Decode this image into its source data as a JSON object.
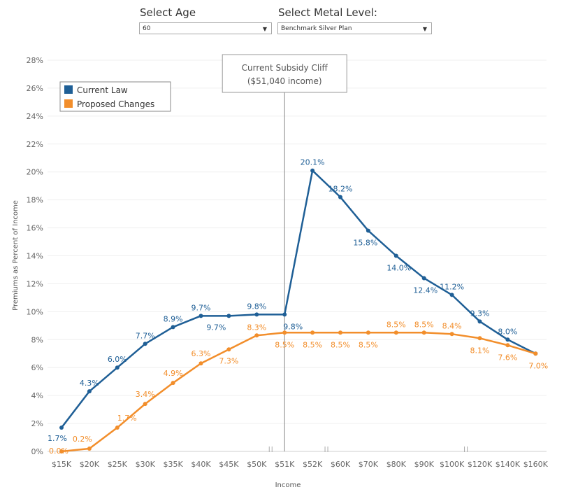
{
  "filters": {
    "age": {
      "label": "Select Age",
      "value": "60"
    },
    "metal": {
      "label": "Select Metal Level:",
      "value": "Benchmark Silver Plan"
    }
  },
  "chart_data": {
    "type": "line",
    "title": "",
    "xlabel": "Income",
    "ylabel": "Premiums as Percent of Income",
    "categories": [
      "$15K",
      "$20K",
      "$25K",
      "$30K",
      "$35K",
      "$40K",
      "$45K",
      "$50K",
      "$51K",
      "$52K",
      "$60K",
      "$70K",
      "$80K",
      "$90K",
      "$100K",
      "$120K",
      "$140K",
      "$160K"
    ],
    "ylim": [
      0,
      28
    ],
    "yticks": [
      "0%",
      "2%",
      "4%",
      "6%",
      "8%",
      "10%",
      "12%",
      "14%",
      "16%",
      "18%",
      "20%",
      "22%",
      "24%",
      "26%",
      "28%"
    ],
    "grid": true,
    "legend_position": "top-left",
    "series": [
      {
        "name": "Current Law",
        "color": "#1f5f96",
        "values": [
          1.7,
          4.3,
          6.0,
          7.7,
          8.9,
          9.7,
          9.7,
          9.8,
          9.8,
          20.1,
          18.2,
          15.8,
          14.0,
          12.4,
          11.2,
          9.3,
          8.0,
          7.0
        ],
        "labels": [
          "1.7%",
          "4.3%",
          "6.0%",
          "7.7%",
          "8.9%",
          "9.7%",
          "9.7%",
          "9.8%",
          "9.8%",
          "20.1%",
          "18.2%",
          "15.8%",
          "14.0%",
          "12.4%",
          "11.2%",
          "9.3%",
          "8.0%",
          ""
        ]
      },
      {
        "name": "Proposed Changes",
        "color": "#f28e2b",
        "values": [
          0.0,
          0.2,
          1.7,
          3.4,
          4.9,
          6.3,
          7.3,
          8.3,
          8.5,
          8.5,
          8.5,
          8.5,
          8.5,
          8.5,
          8.4,
          8.1,
          7.6,
          7.0
        ],
        "labels": [
          "0.0%",
          "0.2%",
          "1.7%",
          "3.4%",
          "4.9%",
          "6.3%",
          "7.3%",
          "8.3%",
          "8.5%",
          "8.5%",
          "8.5%",
          "8.5%",
          "8.5%",
          "8.5%",
          "8.4%",
          "8.1%",
          "7.6%",
          "7.0%"
        ]
      }
    ],
    "annotation": {
      "line1": "Current Subsidy Cliff",
      "line2": "($51,040 income)",
      "at_category": "$51K"
    },
    "axis_breaks_after": [
      "$50K",
      "$52K",
      "$100K"
    ]
  }
}
